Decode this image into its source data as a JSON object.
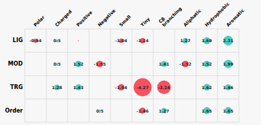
{
  "chart_data": {
    "type": "bubble_matrix",
    "categories": [
      "Polar",
      "Charged",
      "Positive",
      "Negative",
      "Small",
      "Tiny",
      "Cβ\nbranching",
      "Aliphatic",
      "Hydrophobic",
      "Aromatic"
    ],
    "series": [
      {
        "name": "LIG",
        "values": [
          -0.94,
          0.5,
          -0.24,
          0.08,
          -1.04,
          -1.24,
          0.08,
          1.27,
          1.69,
          2.31
        ],
        "value_labels": [
          "-0.94",
          "0.5",
          null,
          null,
          "-1.04",
          "-1.24",
          null,
          "1.27",
          "1.69",
          "2.31"
        ],
        "colors": [
          "#f94f5e",
          "#4ecdc4",
          "#f94f5e",
          "#4ecdc4",
          "#f94f5e",
          "#f94f5e",
          "#4ecdc4",
          "#4ecdc4",
          "#4ecdc4",
          "#4ecdc4"
        ]
      },
      {
        "name": "MOD",
        "values": [
          0.07,
          0.5,
          1.52,
          -1.55,
          0.07,
          0.07,
          1.41,
          -1.52,
          1.52,
          1.99
        ],
        "value_labels": [
          null,
          "0.5",
          "1.52",
          "-1.55",
          null,
          null,
          "1.41",
          "-1.52",
          "1.52",
          "1.99"
        ],
        "colors": [
          "#4ecdc4",
          "#4ecdc4",
          "#4ecdc4",
          "#f94f5e",
          "#4ecdc4",
          "#4ecdc4",
          "#4ecdc4",
          "#f94f5e",
          "#4ecdc4",
          "#4ecdc4"
        ]
      },
      {
        "name": "TRG",
        "values": [
          0.07,
          1.28,
          1.43,
          0.07,
          -1.54,
          -4.27,
          -3.24,
          0.07,
          1.62,
          1.46
        ],
        "value_labels": [
          null,
          "1.28",
          "1.43",
          null,
          "-1.54",
          "-4.27",
          "-3.24",
          null,
          "1.62",
          "1.46"
        ],
        "colors": [
          "#4ecdc4",
          "#4ecdc4",
          "#4ecdc4",
          "#4ecdc4",
          "#f94f5e",
          "#f94f5e",
          "#f94f5e",
          "#4ecdc4",
          "#4ecdc4",
          "#4ecdc4"
        ]
      },
      {
        "name": "Order",
        "values": [
          0.07,
          0.07,
          0.07,
          0.5,
          0.07,
          -1.46,
          1.27,
          0.07,
          1.65,
          1.65
        ],
        "value_labels": [
          null,
          null,
          null,
          "0.5",
          null,
          "-1.46",
          "1.27",
          null,
          "1.65",
          "1.65"
        ],
        "colors": [
          "#4ecdc4",
          "#4ecdc4",
          "#4ecdc4",
          "#4ecdc4",
          "#4ecdc4",
          "#f94f5e",
          "#4ecdc4",
          "#4ecdc4",
          "#4ecdc4",
          "#4ecdc4"
        ]
      }
    ],
    "grid": true,
    "data_labels": true
  }
}
